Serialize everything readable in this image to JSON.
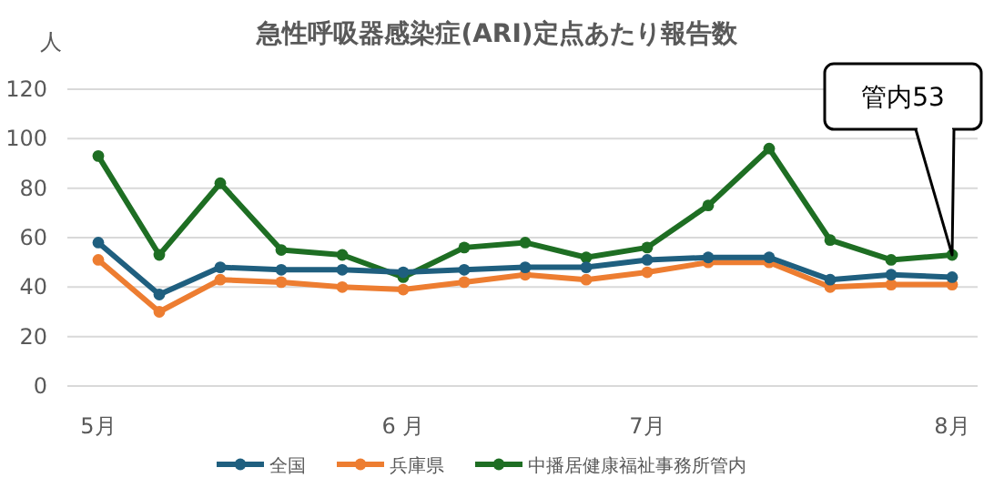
{
  "chart_data": {
    "type": "line",
    "title": "急性呼吸器感染症(ARI)定点あたり報告数",
    "ylabel": "人",
    "categories": [
      "5月",
      null,
      null,
      null,
      null,
      "6 月",
      null,
      null,
      null,
      "7月",
      null,
      null,
      null,
      null,
      "8月"
    ],
    "series": [
      {
        "name": "全国",
        "color": "#1f5f7f",
        "values": [
          58,
          37,
          48,
          47,
          47,
          46,
          47,
          48,
          48,
          51,
          52,
          52,
          43,
          45,
          44
        ]
      },
      {
        "name": "兵庫県",
        "color": "#ed7d31",
        "values": [
          51,
          30,
          43,
          42,
          40,
          39,
          42,
          45,
          43,
          46,
          50,
          50,
          40,
          41,
          41
        ]
      },
      {
        "name": "中播居健康福祉事務所管内",
        "color": "#1e6e23",
        "values": [
          93,
          53,
          82,
          55,
          53,
          44,
          56,
          58,
          52,
          56,
          73,
          96,
          59,
          51,
          53
        ]
      }
    ],
    "ylim": [
      0,
      120
    ],
    "yticks": [
      0,
      20,
      40,
      60,
      80,
      100,
      120
    ],
    "grid": "y",
    "legend": "bottom",
    "marker": "circle",
    "line_style": "solid",
    "annotations": [
      {
        "text": "管内53",
        "x": "8月",
        "y": 53
      }
    ]
  }
}
